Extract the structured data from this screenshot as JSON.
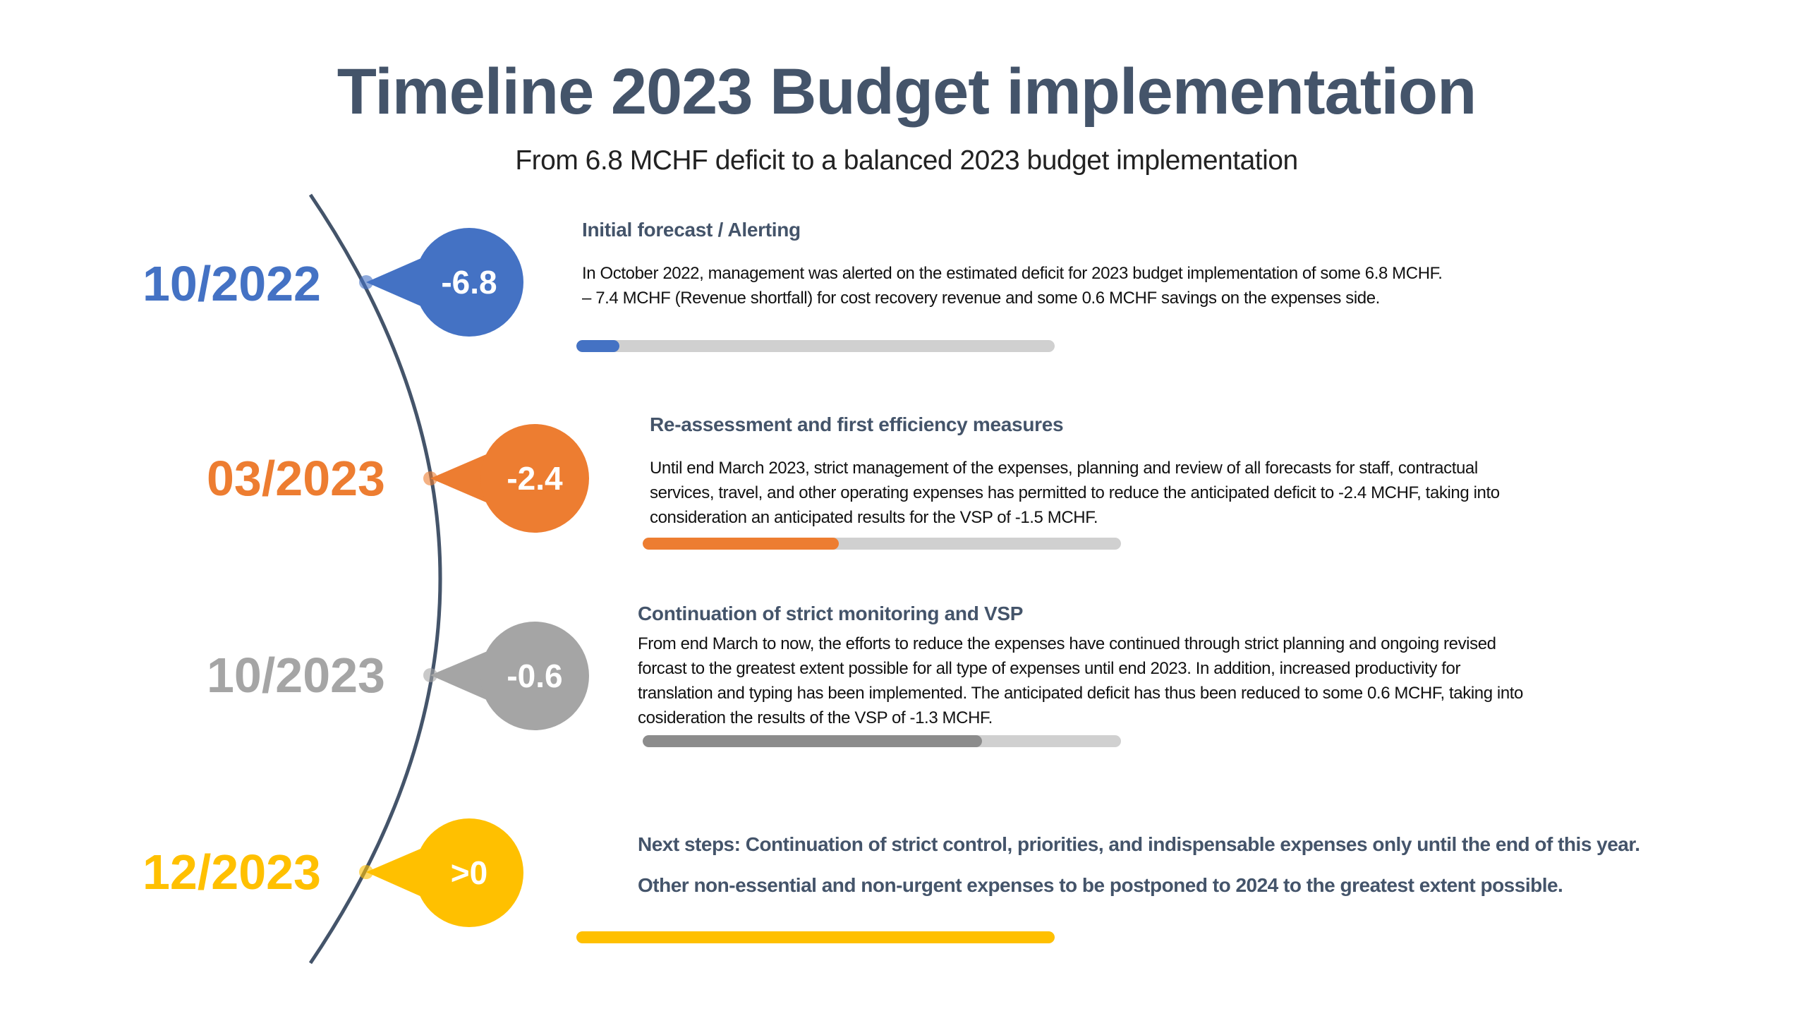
{
  "title": "Timeline 2023 Budget implementation",
  "subtitle": "From 6.8 MCHF deficit to a balanced 2023 budget implementation",
  "colors": {
    "title": "#44546a",
    "blue": "#4472c4",
    "orange": "#ed7d31",
    "gray": "#a5a5a5",
    "yellow": "#ffc000",
    "track": "#d0d0d0",
    "arc": "#44546a"
  },
  "milestones": [
    {
      "date": "10/2022",
      "value": "-6.8",
      "color": "#4472c4",
      "heading": "Initial forecast / Alerting",
      "lines": [
        "In October 2022, management was alerted on the estimated deficit for 2023 budget implementation of some 6.8 MCHF.",
        "– 7.4 MCHF (Revenue shortfall) for cost recovery revenue and some 0.6 MCHF savings on the expenses side."
      ],
      "progress": 0.09
    },
    {
      "date": "03/2023",
      "value": "-2.4",
      "color": "#ed7d31",
      "heading": "Re-assessment and first efficiency measures",
      "lines": [
        "Until end March 2023, strict management of the expenses, planning and review of all forecasts for staff, contractual",
        "services, travel, and other operating expenses has permitted to reduce the anticipated deficit to -2.4 MCHF, taking into",
        "consideration an anticipated results for the VSP of -1.5 MCHF."
      ],
      "progress": 0.41
    },
    {
      "date": "10/2023",
      "value": "-0.6",
      "color": "#a5a5a5",
      "heading": "Continuation of strict monitoring and VSP",
      "lines": [
        "From end March to now, the efforts to reduce the expenses have continued through strict planning and ongoing revised",
        "forcast to the greatest extent possible for all type of expenses until end 2023. In addition, increased productivity for",
        "translation and typing has been implemented. The anticipated deficit has thus been reduced to some 0.6 MCHF, taking into",
        "cosideration the results of the VSP of -1.3 MCHF."
      ],
      "progress": 0.71
    },
    {
      "date": "12/2023",
      "value": ">0",
      "color": "#ffc000",
      "lines": [
        "Next steps: Continuation of strict control, priorities, and indispensable expenses only until the end of this year.",
        "Other non-essential and non-urgent expenses to be postponed to 2024 to the greatest extent possible."
      ],
      "progress": 1.0
    }
  ]
}
